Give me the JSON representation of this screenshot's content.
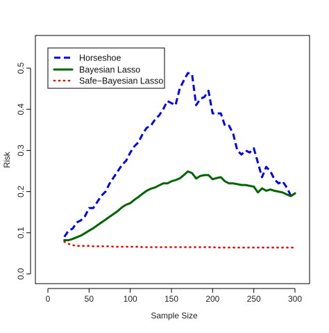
{
  "chart_data": {
    "type": "line",
    "title": "",
    "xlabel": "Sample Size",
    "ylabel": "Risk",
    "xlim": [
      0,
      300
    ],
    "ylim": [
      0.0,
      0.5
    ],
    "xticks": [
      0,
      50,
      100,
      150,
      200,
      250,
      300
    ],
    "yticks": [
      0.0,
      0.1,
      0.2,
      0.3,
      0.4,
      0.5
    ],
    "xtick_labels": [
      "0",
      "50",
      "100",
      "150",
      "200",
      "250",
      "300"
    ],
    "ytick_labels": [
      "0.0",
      "0.1",
      "0.2",
      "0.3",
      "0.4",
      "0.5"
    ],
    "grid": false,
    "legend_position": "top-left",
    "x": [
      20,
      25,
      30,
      35,
      40,
      45,
      50,
      55,
      60,
      65,
      70,
      75,
      80,
      85,
      90,
      95,
      100,
      105,
      110,
      115,
      120,
      125,
      130,
      135,
      140,
      145,
      150,
      155,
      160,
      165,
      170,
      175,
      180,
      185,
      190,
      195,
      200,
      205,
      210,
      215,
      220,
      225,
      230,
      235,
      240,
      245,
      250,
      255,
      260,
      265,
      270,
      275,
      280,
      285,
      290,
      295,
      300
    ],
    "series": [
      {
        "name": "Horseshoe",
        "color": "#0000ee",
        "style": "dashed",
        "values": [
          0.09,
          0.105,
          0.11,
          0.125,
          0.13,
          0.14,
          0.16,
          0.16,
          0.175,
          0.19,
          0.2,
          0.22,
          0.235,
          0.25,
          0.265,
          0.275,
          0.295,
          0.31,
          0.32,
          0.34,
          0.355,
          0.36,
          0.375,
          0.385,
          0.4,
          0.42,
          0.415,
          0.41,
          0.45,
          0.47,
          0.488,
          0.485,
          0.41,
          0.425,
          0.43,
          0.445,
          0.39,
          0.39,
          0.39,
          0.36,
          0.36,
          0.34,
          0.3,
          0.29,
          0.3,
          0.295,
          0.305,
          0.27,
          0.235,
          0.26,
          0.25,
          0.23,
          0.22,
          0.225,
          0.21,
          0.19,
          0.195
        ]
      },
      {
        "name": "Bayesian Lasso",
        "color": "#006400",
        "style": "solid",
        "values": [
          0.082,
          0.082,
          0.085,
          0.089,
          0.093,
          0.099,
          0.105,
          0.111,
          0.118,
          0.125,
          0.132,
          0.139,
          0.146,
          0.153,
          0.162,
          0.168,
          0.172,
          0.18,
          0.187,
          0.195,
          0.202,
          0.207,
          0.21,
          0.215,
          0.22,
          0.22,
          0.225,
          0.228,
          0.232,
          0.24,
          0.249,
          0.245,
          0.232,
          0.238,
          0.24,
          0.24,
          0.23,
          0.233,
          0.235,
          0.225,
          0.22,
          0.22,
          0.218,
          0.216,
          0.216,
          0.214,
          0.212,
          0.198,
          0.208,
          0.202,
          0.205,
          0.202,
          0.2,
          0.198,
          0.193,
          0.189,
          0.196
        ]
      },
      {
        "name": "Safe−Bayesian Lasso",
        "color": "#ee0000",
        "style": "dotted",
        "values": [
          0.078,
          0.073,
          0.07,
          0.068,
          0.068,
          0.068,
          0.068,
          0.067,
          0.067,
          0.067,
          0.067,
          0.067,
          0.066,
          0.066,
          0.066,
          0.066,
          0.066,
          0.066,
          0.066,
          0.065,
          0.065,
          0.065,
          0.065,
          0.065,
          0.065,
          0.065,
          0.065,
          0.065,
          0.065,
          0.065,
          0.065,
          0.065,
          0.065,
          0.065,
          0.065,
          0.065,
          0.065,
          0.064,
          0.064,
          0.064,
          0.064,
          0.064,
          0.064,
          0.064,
          0.064,
          0.064,
          0.064,
          0.064,
          0.064,
          0.064,
          0.064,
          0.064,
          0.064,
          0.064,
          0.064,
          0.064,
          0.064
        ]
      }
    ]
  }
}
